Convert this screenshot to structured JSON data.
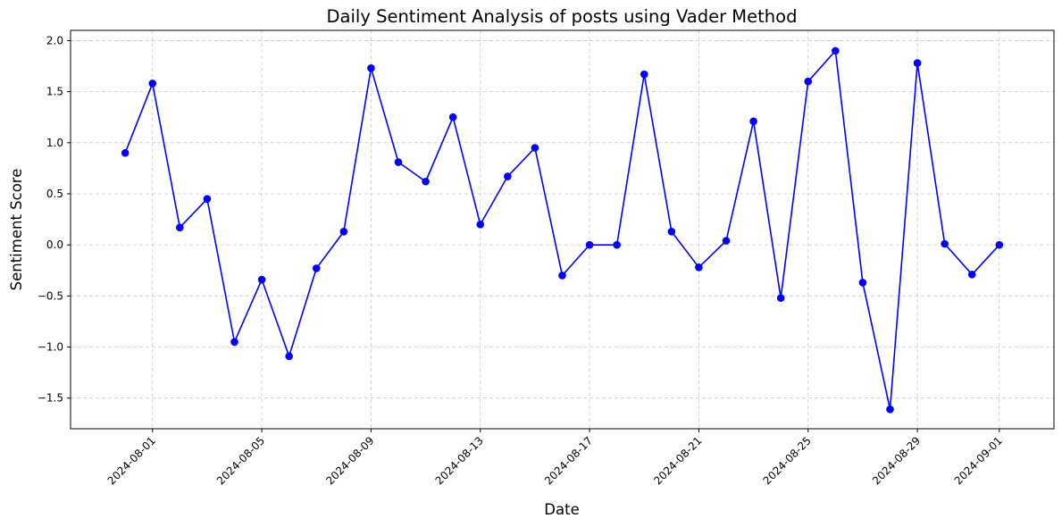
{
  "chart_data": {
    "type": "line",
    "title": "Daily Sentiment Analysis of posts using Vader Method",
    "xlabel": "Date",
    "ylabel": "Sentiment Score",
    "xlim": [
      "2024-07-29",
      "2024-09-03"
    ],
    "ylim": [
      -1.8,
      2.1
    ],
    "x_ticks": [
      "2024-08-01",
      "2024-08-05",
      "2024-08-09",
      "2024-08-13",
      "2024-08-17",
      "2024-08-21",
      "2024-08-25",
      "2024-08-29",
      "2024-09-01"
    ],
    "y_ticks": [
      -1.5,
      -1.0,
      -0.5,
      0.0,
      0.5,
      1.0,
      1.5,
      2.0
    ],
    "y_tick_labels": [
      "−1.5",
      "−1.0",
      "−0.5",
      "0.0",
      "0.5",
      "1.0",
      "1.5",
      "2.0"
    ],
    "grid": true,
    "series": [
      {
        "color": "#0000ff",
        "marker": "circle",
        "x": [
          "2024-07-31",
          "2024-08-01",
          "2024-08-02",
          "2024-08-03",
          "2024-08-04",
          "2024-08-05",
          "2024-08-06",
          "2024-08-07",
          "2024-08-08",
          "2024-08-09",
          "2024-08-10",
          "2024-08-11",
          "2024-08-12",
          "2024-08-13",
          "2024-08-14",
          "2024-08-15",
          "2024-08-16",
          "2024-08-17",
          "2024-08-18",
          "2024-08-19",
          "2024-08-20",
          "2024-08-21",
          "2024-08-22",
          "2024-08-23",
          "2024-08-24",
          "2024-08-25",
          "2024-08-26",
          "2024-08-27",
          "2024-08-28",
          "2024-08-29",
          "2024-08-30",
          "2024-08-31",
          "2024-09-01"
        ],
        "y": [
          0.9,
          1.58,
          0.17,
          0.45,
          -0.95,
          -0.34,
          -1.09,
          -0.23,
          0.13,
          1.73,
          0.81,
          0.62,
          1.25,
          0.2,
          0.67,
          0.95,
          -0.3,
          0.0,
          0.0,
          1.67,
          0.13,
          -0.22,
          0.04,
          1.21,
          -0.52,
          1.6,
          1.9,
          -0.37,
          -1.61,
          1.78,
          0.01,
          -0.29,
          0.0
        ]
      }
    ]
  }
}
